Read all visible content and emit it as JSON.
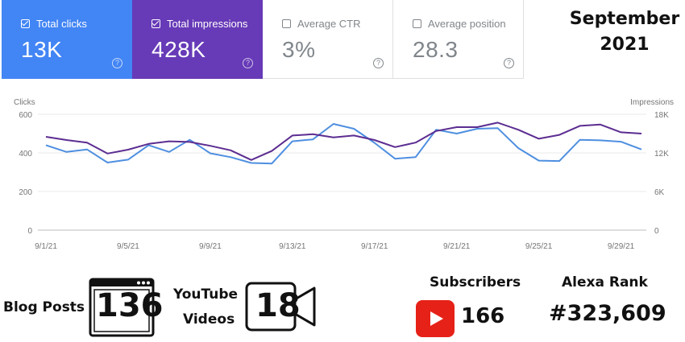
{
  "cards": [
    {
      "label": "Total clicks",
      "value": "13K",
      "checked": true
    },
    {
      "label": "Total impressions",
      "value": "428K",
      "checked": true
    },
    {
      "label": "Average CTR",
      "value": "3%",
      "checked": false
    },
    {
      "label": "Average position",
      "value": "28.3",
      "checked": false
    }
  ],
  "help_glyph": "?",
  "period": {
    "month": "September",
    "year": "2021"
  },
  "chart_data": {
    "type": "line",
    "x": [
      "9/1/21",
      "9/2/21",
      "9/3/21",
      "9/4/21",
      "9/5/21",
      "9/6/21",
      "9/7/21",
      "9/8/21",
      "9/9/21",
      "9/10/21",
      "9/11/21",
      "9/12/21",
      "9/13/21",
      "9/14/21",
      "9/15/21",
      "9/16/21",
      "9/17/21",
      "9/18/21",
      "9/19/21",
      "9/20/21",
      "9/21/21",
      "9/22/21",
      "9/23/21",
      "9/24/21",
      "9/25/21",
      "9/26/21",
      "9/27/21",
      "9/28/21",
      "9/29/21",
      "9/30/21"
    ],
    "xticks": [
      "9/1/21",
      "9/5/21",
      "9/9/21",
      "9/13/21",
      "9/17/21",
      "9/21/21",
      "9/25/21",
      "9/29/21"
    ],
    "left_axis": {
      "label": "Clicks",
      "ticks": [
        "0",
        "200",
        "400",
        "600"
      ],
      "ylim": [
        0,
        600
      ]
    },
    "right_axis": {
      "label": "Impressions",
      "ticks": [
        "0",
        "6K",
        "12K",
        "18K"
      ],
      "ylim": [
        0,
        18000
      ]
    },
    "series": [
      {
        "name": "Clicks",
        "color": "#4e8fe0",
        "axis": "left",
        "values": [
          440,
          405,
          418,
          350,
          365,
          440,
          405,
          468,
          398,
          378,
          348,
          345,
          460,
          470,
          550,
          525,
          452,
          370,
          378,
          520,
          500,
          525,
          528,
          425,
          360,
          358,
          468,
          465,
          458,
          418
        ]
      },
      {
        "name": "Impressions",
        "color": "#5c2d91",
        "axis": "right",
        "values": [
          14500,
          14000,
          13600,
          11900,
          12500,
          13400,
          13800,
          13700,
          13100,
          12400,
          10900,
          12300,
          14700,
          14900,
          14400,
          14700,
          14000,
          12900,
          13600,
          15400,
          16000,
          16000,
          16700,
          15600,
          14200,
          14800,
          16200,
          16400,
          15200,
          15000
        ]
      }
    ]
  },
  "stats": {
    "blog_label": "Blog Posts",
    "blog_value": "136",
    "youtube_label_1": "YouTube",
    "youtube_label_2": "Videos",
    "youtube_value": "18",
    "subscribers_label": "Subscribers",
    "subscribers_value": "166",
    "alexa_label": "Alexa Rank",
    "alexa_value": "#323,609"
  },
  "colors": {
    "clicks_card": "#4285f4",
    "impressions_card": "#673ab7",
    "youtube_red": "#e62117"
  }
}
